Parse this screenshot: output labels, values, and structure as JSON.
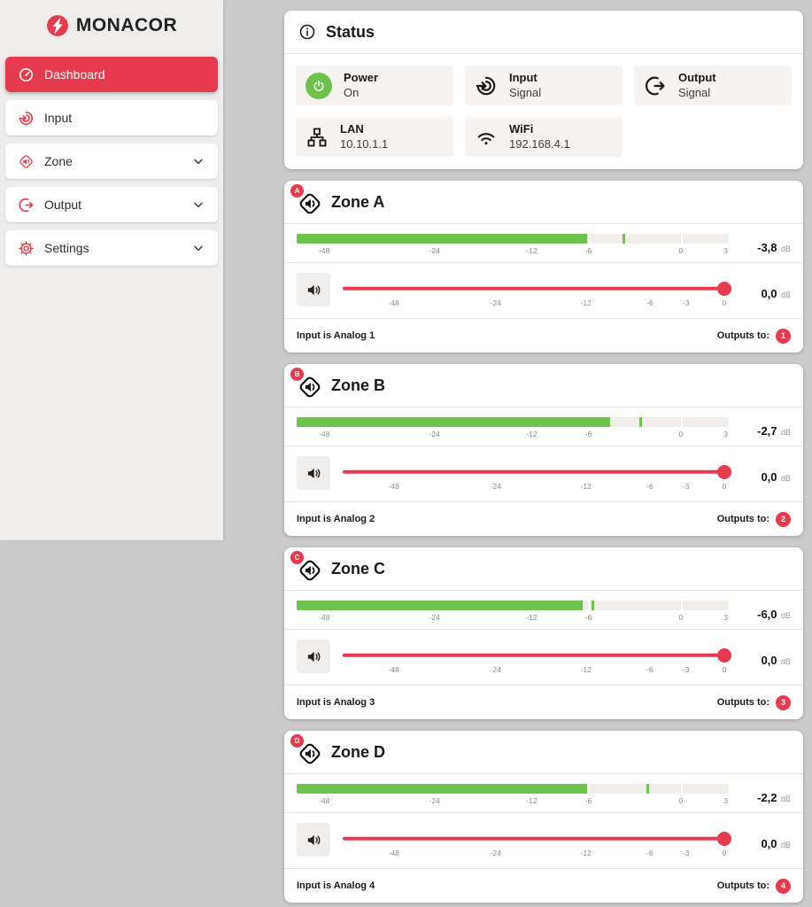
{
  "colors": {
    "accent_red": "#e63a4e",
    "signal_green": "#6cc24a"
  },
  "brand": {
    "name": "MONACOR",
    "logo_icon": "monacor-logo-icon"
  },
  "sidebar": {
    "items": [
      {
        "label": "Dashboard",
        "icon": "dashboard-icon",
        "active": true,
        "chevron": false
      },
      {
        "label": "Input",
        "icon": "input-icon",
        "active": false,
        "chevron": false
      },
      {
        "label": "Zone",
        "icon": "zone-icon",
        "active": false,
        "chevron": true
      },
      {
        "label": "Output",
        "icon": "output-icon",
        "active": false,
        "chevron": true
      },
      {
        "label": "Settings",
        "icon": "settings-icon",
        "active": false,
        "chevron": true
      }
    ]
  },
  "status": {
    "title": "Status",
    "title_icon": "info-icon",
    "tiles": [
      {
        "icon": "power-icon",
        "icon_variant": "green-circle",
        "label": "Power",
        "value": "On"
      },
      {
        "icon": "input-icon",
        "icon_variant": "plain",
        "label": "Input",
        "value": "Signal"
      },
      {
        "icon": "output-icon",
        "icon_variant": "plain",
        "label": "Output",
        "value": "Signal"
      },
      {
        "icon": "lan-icon",
        "icon_variant": "plain",
        "label": "LAN",
        "value": "10.10.1.1"
      },
      {
        "icon": "wifi-icon",
        "icon_variant": "plain",
        "label": "WiFi",
        "value": "192.168.4.1"
      }
    ]
  },
  "scales": {
    "meter": {
      "ticks": [
        {
          "label": "-48",
          "pos": 6.4
        },
        {
          "label": "-24",
          "pos": 31.9
        },
        {
          "label": "-12",
          "pos": 54.4
        },
        {
          "label": "-6",
          "pos": 67.5
        },
        {
          "label": "0",
          "pos": 88.9
        },
        {
          "label": "3",
          "pos": 99.3
        }
      ]
    },
    "volume": {
      "ticks": [
        {
          "label": "-48",
          "pos": 13.3
        },
        {
          "label": "-24",
          "pos": 39.8
        },
        {
          "label": "-12",
          "pos": 63.3
        },
        {
          "label": "-6",
          "pos": 79.9
        },
        {
          "label": "-3",
          "pos": 89.3
        },
        {
          "label": "0",
          "pos": 99.3
        }
      ]
    }
  },
  "zones": [
    {
      "letter": "A",
      "title": "Zone A",
      "meter": {
        "value": "-3,8",
        "unit": "dB",
        "level_percent": 67.2,
        "peak_percent": 75.4
      },
      "volume": {
        "value": "0,0",
        "unit": "dB",
        "percent": 99.3
      },
      "footer": {
        "input": "Input is Analog 1",
        "outputs_label": "Outputs to:",
        "output": "1"
      }
    },
    {
      "letter": "B",
      "title": "Zone B",
      "meter": {
        "value": "-2,7",
        "unit": "dB",
        "level_percent": 72.6,
        "peak_percent": 79.3
      },
      "volume": {
        "value": "0,0",
        "unit": "dB",
        "percent": 99.3
      },
      "footer": {
        "input": "Input is Analog 2",
        "outputs_label": "Outputs to:",
        "output": "2"
      }
    },
    {
      "letter": "C",
      "title": "Zone C",
      "meter": {
        "value": "-6,0",
        "unit": "dB",
        "level_percent": 66.2,
        "peak_percent": 68.2
      },
      "volume": {
        "value": "0,0",
        "unit": "dB",
        "percent": 99.3
      },
      "footer": {
        "input": "Input is Analog 3",
        "outputs_label": "Outputs to:",
        "output": "3"
      }
    },
    {
      "letter": "D",
      "title": "Zone D",
      "meter": {
        "value": "-2,2",
        "unit": "dB",
        "level_percent": 67.3,
        "peak_percent": 81.0
      },
      "volume": {
        "value": "0,0",
        "unit": "dB",
        "percent": 99.3
      },
      "footer": {
        "input": "Input is Analog 4",
        "outputs_label": "Outputs to:",
        "output": "4"
      }
    }
  ]
}
